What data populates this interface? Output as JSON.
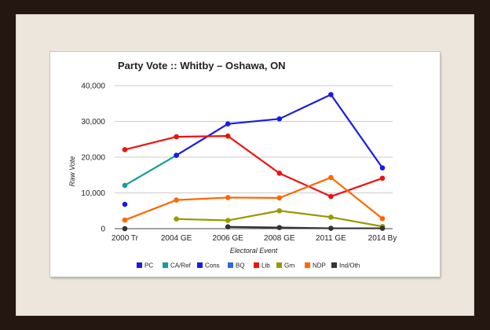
{
  "chart_data": {
    "type": "line",
    "title": "Party Vote :: Whitby – Oshawa, ON",
    "xlabel": "Electoral Event",
    "ylabel": "Raw Vote",
    "categories": [
      "2000 Tr",
      "2004 GE",
      "2006 GE",
      "2008 GE",
      "2011 GE",
      "2014 By"
    ],
    "ylim": [
      0,
      40000
    ],
    "yticks": [
      0,
      10000,
      20000,
      30000,
      40000
    ],
    "ytick_labels": [
      "0",
      "10,000",
      "20,000",
      "30,000",
      "40,000"
    ],
    "grid": true,
    "legend_position": "bottom",
    "series": [
      {
        "name": "PC",
        "color": "#1a1ae6",
        "values": [
          6800,
          null,
          null,
          null,
          null,
          null
        ]
      },
      {
        "name": "CA/Ref",
        "color": "#169c9c",
        "values": [
          12100,
          20500,
          null,
          null,
          null,
          null
        ]
      },
      {
        "name": "Cons",
        "color": "#1a1ae6",
        "values": [
          null,
          20500,
          29300,
          30700,
          37500,
          17000
        ]
      },
      {
        "name": "BQ",
        "color": "#3366dd",
        "values": [
          null,
          null,
          null,
          null,
          null,
          null
        ]
      },
      {
        "name": "Lib",
        "color": "#ee1111",
        "values": [
          22100,
          25700,
          25900,
          15500,
          9000,
          14100
        ]
      },
      {
        "name": "Grn",
        "color": "#999900",
        "values": [
          null,
          2700,
          2300,
          5000,
          3200,
          600
        ]
      },
      {
        "name": "NDP",
        "color": "#ff6600",
        "values": [
          2400,
          8000,
          8700,
          8600,
          14300,
          2800
        ]
      },
      {
        "name": "Ind/Oth",
        "color": "#333333",
        "values": [
          0,
          null,
          500,
          300,
          100,
          100
        ]
      }
    ]
  }
}
